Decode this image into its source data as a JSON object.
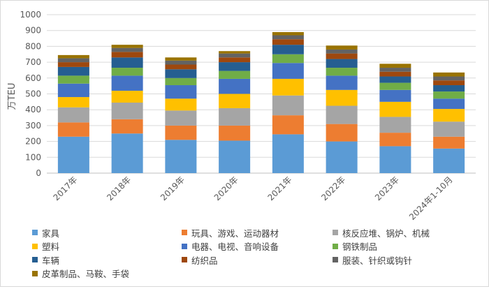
{
  "chart_data": {
    "type": "bar",
    "stacked": true,
    "ylabel": "万TEU",
    "ylim": [
      0,
      1000
    ],
    "yticks": [
      0,
      100,
      200,
      300,
      400,
      500,
      600,
      700,
      800,
      900,
      1000
    ],
    "categories": [
      "2017年",
      "2018年",
      "2019年",
      "2020年",
      "2021年",
      "2022年",
      "2023年",
      "2024年1-10月"
    ],
    "grid": true,
    "legend_position": "bottom",
    "series": [
      {
        "name": "家具",
        "color": "#5b9bd5",
        "values": [
          230,
          250,
          210,
          205,
          245,
          200,
          170,
          155
        ]
      },
      {
        "name": "玩具、游戏、运动器材",
        "color": "#ed7d31",
        "values": [
          90,
          90,
          90,
          95,
          120,
          110,
          85,
          75
        ]
      },
      {
        "name": "核反应堆、锅炉、机械",
        "color": "#a5a5a5",
        "values": [
          95,
          105,
          95,
          110,
          125,
          115,
          100,
          95
        ]
      },
      {
        "name": "塑料",
        "color": "#ffc000",
        "values": [
          65,
          75,
          75,
          90,
          105,
          100,
          95,
          80
        ]
      },
      {
        "name": "电器、电视、音响设备",
        "color": "#4472c4",
        "values": [
          85,
          95,
          85,
          95,
          100,
          90,
          75,
          65
        ]
      },
      {
        "name": "钢铁制品",
        "color": "#70ad47",
        "values": [
          50,
          50,
          45,
          50,
          55,
          50,
          45,
          45
        ]
      },
      {
        "name": "车辆",
        "color": "#255e91",
        "values": [
          55,
          65,
          55,
          55,
          60,
          55,
          40,
          40
        ]
      },
      {
        "name": "纺织品",
        "color": "#9e480e",
        "values": [
          30,
          35,
          30,
          30,
          35,
          35,
          30,
          30
        ]
      },
      {
        "name": "服装、针织或钩针",
        "color": "#636363",
        "values": [
          25,
          25,
          25,
          25,
          25,
          25,
          25,
          25
        ]
      },
      {
        "name": "皮革制品、马鞍、手袋",
        "color": "#997300",
        "values": [
          20,
          20,
          20,
          15,
          20,
          25,
          25,
          25
        ]
      }
    ]
  }
}
